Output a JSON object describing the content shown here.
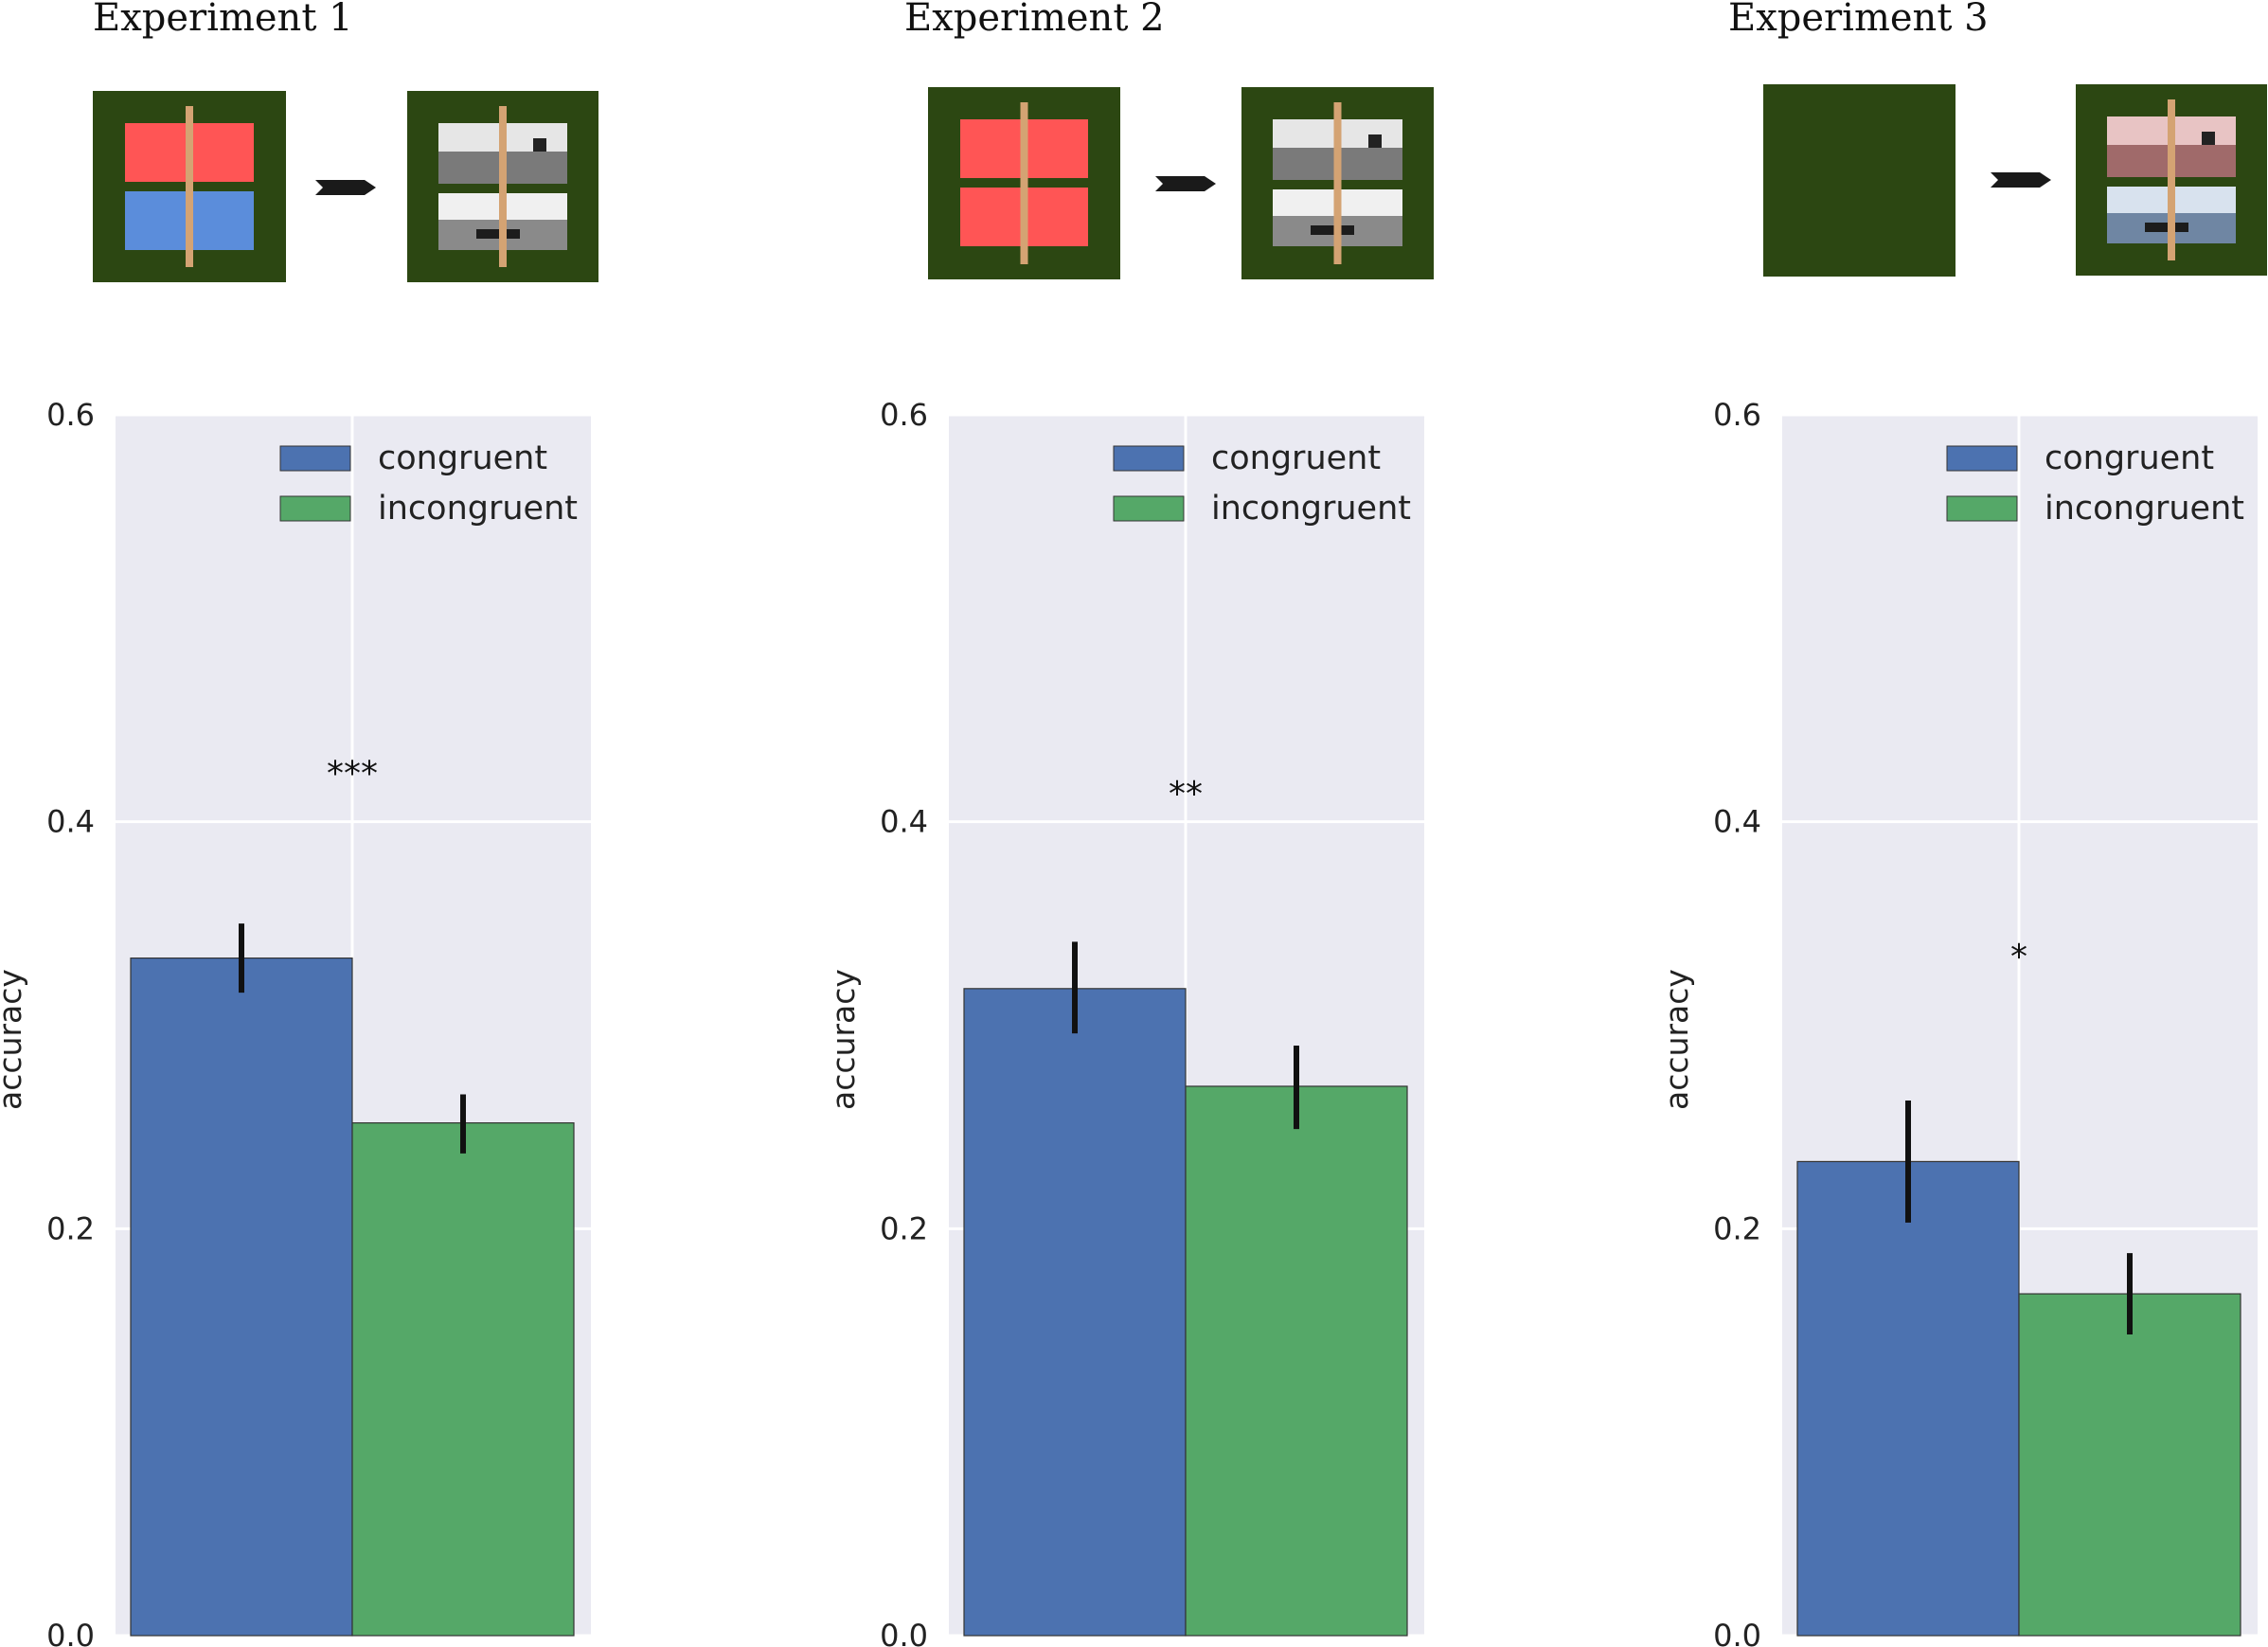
{
  "chart_data": [
    {
      "type": "bar",
      "title": "Experiment 1",
      "ylabel": "accuracy",
      "xlabel": "",
      "ylim": [
        0,
        0.6
      ],
      "yticks": [
        "0.0",
        "0.2",
        "0.4",
        "0.6"
      ],
      "grid": true,
      "legend_position": "top-right",
      "significance": "***",
      "series": [
        {
          "name": "congruent",
          "value": 0.333,
          "error": [
            0.316,
            0.35
          ],
          "color": "#4c72b0"
        },
        {
          "name": "incongruent",
          "value": 0.252,
          "error": [
            0.237,
            0.266
          ],
          "color": "#55a868"
        }
      ],
      "stimulus": "color-cue"
    },
    {
      "type": "bar",
      "title": "Experiment 2",
      "ylabel": "accuracy",
      "xlabel": "",
      "ylim": [
        0,
        0.6
      ],
      "yticks": [
        "0.0",
        "0.2",
        "0.4",
        "0.6"
      ],
      "grid": true,
      "legend_position": "top-right",
      "significance": "**",
      "series": [
        {
          "name": "congruent",
          "value": 0.318,
          "error": [
            0.296,
            0.341
          ],
          "color": "#4c72b0"
        },
        {
          "name": "incongruent",
          "value": 0.27,
          "error": [
            0.249,
            0.29
          ],
          "color": "#55a868"
        }
      ],
      "stimulus": "same-color-cue"
    },
    {
      "type": "bar",
      "title": "Experiment 3",
      "ylabel": "accuracy",
      "xlabel": "",
      "ylim": [
        0,
        0.6
      ],
      "yticks": [
        "0.0",
        "0.2",
        "0.4",
        "0.6"
      ],
      "grid": true,
      "legend_position": "top-right",
      "significance": "*",
      "series": [
        {
          "name": "congruent",
          "value": 0.233,
          "error": [
            0.203,
            0.263
          ],
          "color": "#4c72b0"
        },
        {
          "name": "incongruent",
          "value": 0.168,
          "error": [
            0.148,
            0.188
          ],
          "color": "#55a868"
        }
      ],
      "stimulus": "no-cue-tinted-images"
    }
  ],
  "colors": {
    "plot_background": "#eaeaf2",
    "grid": "#ffffff",
    "stimulus_frame": "#2c4712",
    "cue_red": "#ff5555",
    "cue_blue": "#5b8ddb",
    "fixation_bar": "#d4a373",
    "arrow": "#1a1a1a"
  }
}
